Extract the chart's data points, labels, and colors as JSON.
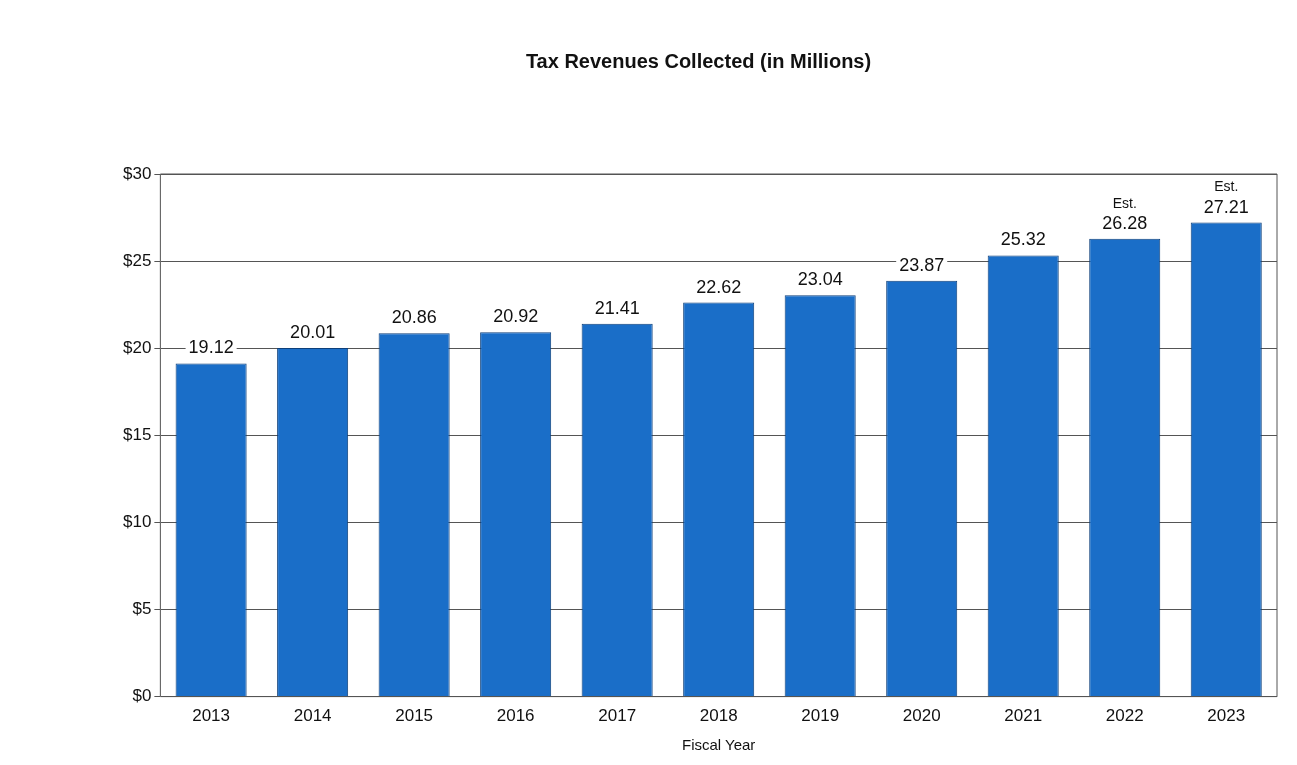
{
  "chart_data": {
    "type": "bar",
    "title": "Tax Revenues Collected (in Millions)",
    "xlabel": "Fiscal Year",
    "categories": [
      "2013",
      "2014",
      "2015",
      "2016",
      "2017",
      "2018",
      "2019",
      "2020",
      "2021",
      "2022",
      "2023"
    ],
    "values": [
      19.12,
      20.01,
      20.86,
      20.92,
      21.41,
      22.62,
      23.04,
      23.87,
      25.32,
      26.28,
      27.21
    ],
    "color": "#1a6ec8",
    "ylim": [
      0,
      30
    ],
    "yticks": [
      {
        "value": 0,
        "label": "$0"
      },
      {
        "value": 5,
        "label": "$5"
      },
      {
        "value": 10,
        "label": "$10"
      },
      {
        "value": 15,
        "label": "$15"
      },
      {
        "value": 20,
        "label": "$20"
      },
      {
        "value": 25,
        "label": "$25"
      },
      {
        "value": 30,
        "label": "$30"
      }
    ],
    "grid": "y",
    "legend": false,
    "data_labels": true,
    "annotations": [
      {
        "text": "Est.",
        "x": "2022",
        "y": 26.28
      },
      {
        "text": "Est.",
        "x": "2023",
        "y": 27.21
      }
    ]
  }
}
